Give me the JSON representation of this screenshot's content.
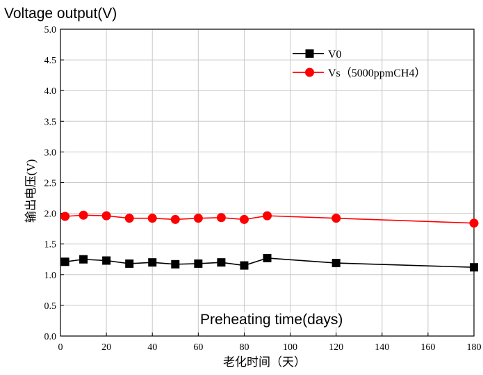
{
  "overlay_title": "Voltage output(V)",
  "overlay_xlabel": "Preheating time(days)",
  "chart_data": {
    "type": "line",
    "title": "",
    "xlabel": "老化时间（天）",
    "ylabel": "输出电压(V)",
    "xlim": [
      0,
      180
    ],
    "ylim": [
      0,
      5.0
    ],
    "xticks": [
      0,
      20,
      40,
      60,
      80,
      100,
      120,
      140,
      160,
      180
    ],
    "yticks": [
      "0.0",
      "0.5",
      "1.0",
      "1.5",
      "2.0",
      "2.5",
      "3.0",
      "3.5",
      "4.0",
      "4.5",
      "5.0"
    ],
    "grid": true,
    "legend_position": "top-right",
    "series": [
      {
        "name": "V0",
        "color": "#000000",
        "marker": "square",
        "x": [
          2,
          10,
          20,
          30,
          40,
          50,
          60,
          70,
          80,
          90,
          120,
          180
        ],
        "y": [
          1.21,
          1.25,
          1.23,
          1.18,
          1.2,
          1.17,
          1.18,
          1.2,
          1.15,
          1.27,
          1.19,
          1.12
        ]
      },
      {
        "name": "Vs（5000ppmCH4）",
        "color": "#ff0000",
        "marker": "circle",
        "x": [
          2,
          10,
          20,
          30,
          40,
          50,
          60,
          70,
          80,
          90,
          120,
          180
        ],
        "y": [
          1.95,
          1.97,
          1.96,
          1.92,
          1.92,
          1.9,
          1.92,
          1.93,
          1.9,
          1.96,
          1.92,
          1.84
        ]
      }
    ]
  }
}
